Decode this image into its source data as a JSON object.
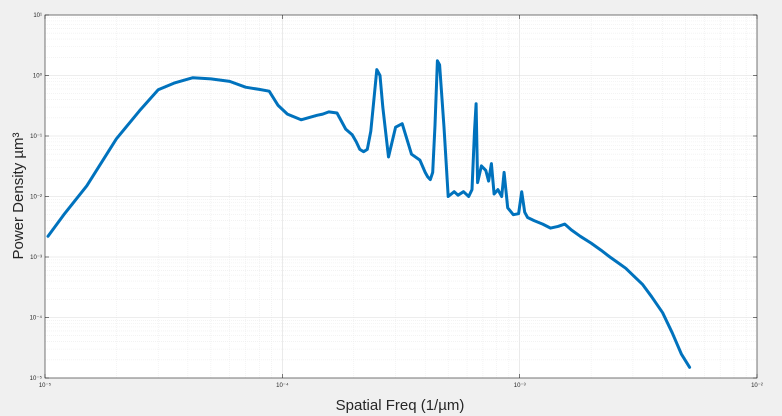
{
  "chart_data": {
    "type": "line",
    "title": "",
    "xlabel": "Spatial Freq (1/µm)",
    "ylabel": "Power Density µm³",
    "xscale": "log",
    "yscale": "log",
    "xlim": [
      1e-05,
      0.01
    ],
    "ylim": [
      1e-05,
      10
    ],
    "grid": "on (major + minor)",
    "legend": "none",
    "line_color": "#0072BD",
    "xticks": [
      {
        "value": 1e-05,
        "label": "10⁻⁵"
      },
      {
        "value": 0.0001,
        "label": "10⁻⁴"
      },
      {
        "value": 0.001,
        "label": "10⁻³"
      },
      {
        "value": 0.01,
        "label": "10⁻²"
      }
    ],
    "yticks": [
      {
        "value": 10,
        "label": "10¹"
      },
      {
        "value": 1,
        "label": "10⁰"
      },
      {
        "value": 0.1,
        "label": "10⁻¹"
      },
      {
        "value": 0.01,
        "label": "10⁻²"
      },
      {
        "value": 0.001,
        "label": "10⁻³"
      },
      {
        "value": 0.0001,
        "label": "10⁻⁴"
      },
      {
        "value": 1e-05,
        "label": "10⁻⁵"
      }
    ],
    "series": [
      {
        "x": [
          1.03e-05,
          1.2e-05,
          1.5e-05,
          2e-05,
          2.5e-05,
          3e-05,
          3.5e-05,
          4.2e-05,
          5e-05,
          6e-05,
          7e-05,
          8e-05,
          8.8e-05,
          9.6e-05,
          0.000105,
          0.00012,
          0.00014,
          0.000148,
          0.000157,
          0.00017,
          0.000185,
          0.000197,
          0.000205,
          0.000212,
          0.00022,
          0.000228,
          0.000236,
          0.000243,
          0.00025,
          0.000258,
          0.000265,
          0.00028,
          0.0003,
          0.00032,
          0.00035,
          0.00038,
          0.0004,
          0.00041,
          0.00042,
          0.00043,
          0.00044,
          0.00045,
          0.00046,
          0.00048,
          0.0005,
          0.00053,
          0.00055,
          0.00058,
          0.00061,
          0.00063,
          0.000645,
          0.000655,
          0.000665,
          0.00069,
          0.00072,
          0.00074,
          0.00076,
          0.00078,
          0.00081,
          0.00084,
          0.00086,
          0.00089,
          0.00094,
          0.00099,
          0.00102,
          0.00105,
          0.00108,
          0.00115,
          0.00125,
          0.00135,
          0.00145,
          0.00155,
          0.00165,
          0.0018,
          0.002,
          0.0022,
          0.0024,
          0.0026,
          0.0028,
          0.003,
          0.0033,
          0.0036,
          0.004,
          0.0044,
          0.0048,
          0.0052
        ],
        "y": [
          0.0022,
          0.005,
          0.015,
          0.09,
          0.26,
          0.58,
          0.75,
          0.92,
          0.88,
          0.8,
          0.64,
          0.59,
          0.55,
          0.32,
          0.23,
          0.185,
          0.22,
          0.23,
          0.25,
          0.24,
          0.13,
          0.105,
          0.08,
          0.06,
          0.055,
          0.06,
          0.12,
          0.4,
          1.25,
          1.0,
          0.3,
          0.045,
          0.14,
          0.16,
          0.05,
          0.04,
          0.025,
          0.021,
          0.019,
          0.025,
          0.15,
          1.75,
          1.5,
          0.14,
          0.01,
          0.012,
          0.0105,
          0.012,
          0.01,
          0.013,
          0.12,
          0.34,
          0.017,
          0.032,
          0.027,
          0.018,
          0.035,
          0.011,
          0.013,
          0.01,
          0.025,
          0.0065,
          0.005,
          0.0052,
          0.012,
          0.0055,
          0.0045,
          0.004,
          0.0035,
          0.003,
          0.0032,
          0.0035,
          0.0028,
          0.0022,
          0.0017,
          0.0013,
          0.001,
          0.0008,
          0.00065,
          0.0005,
          0.00035,
          0.00022,
          0.00012,
          5.5e-05,
          2.5e-05,
          1.5e-05
        ]
      }
    ]
  }
}
